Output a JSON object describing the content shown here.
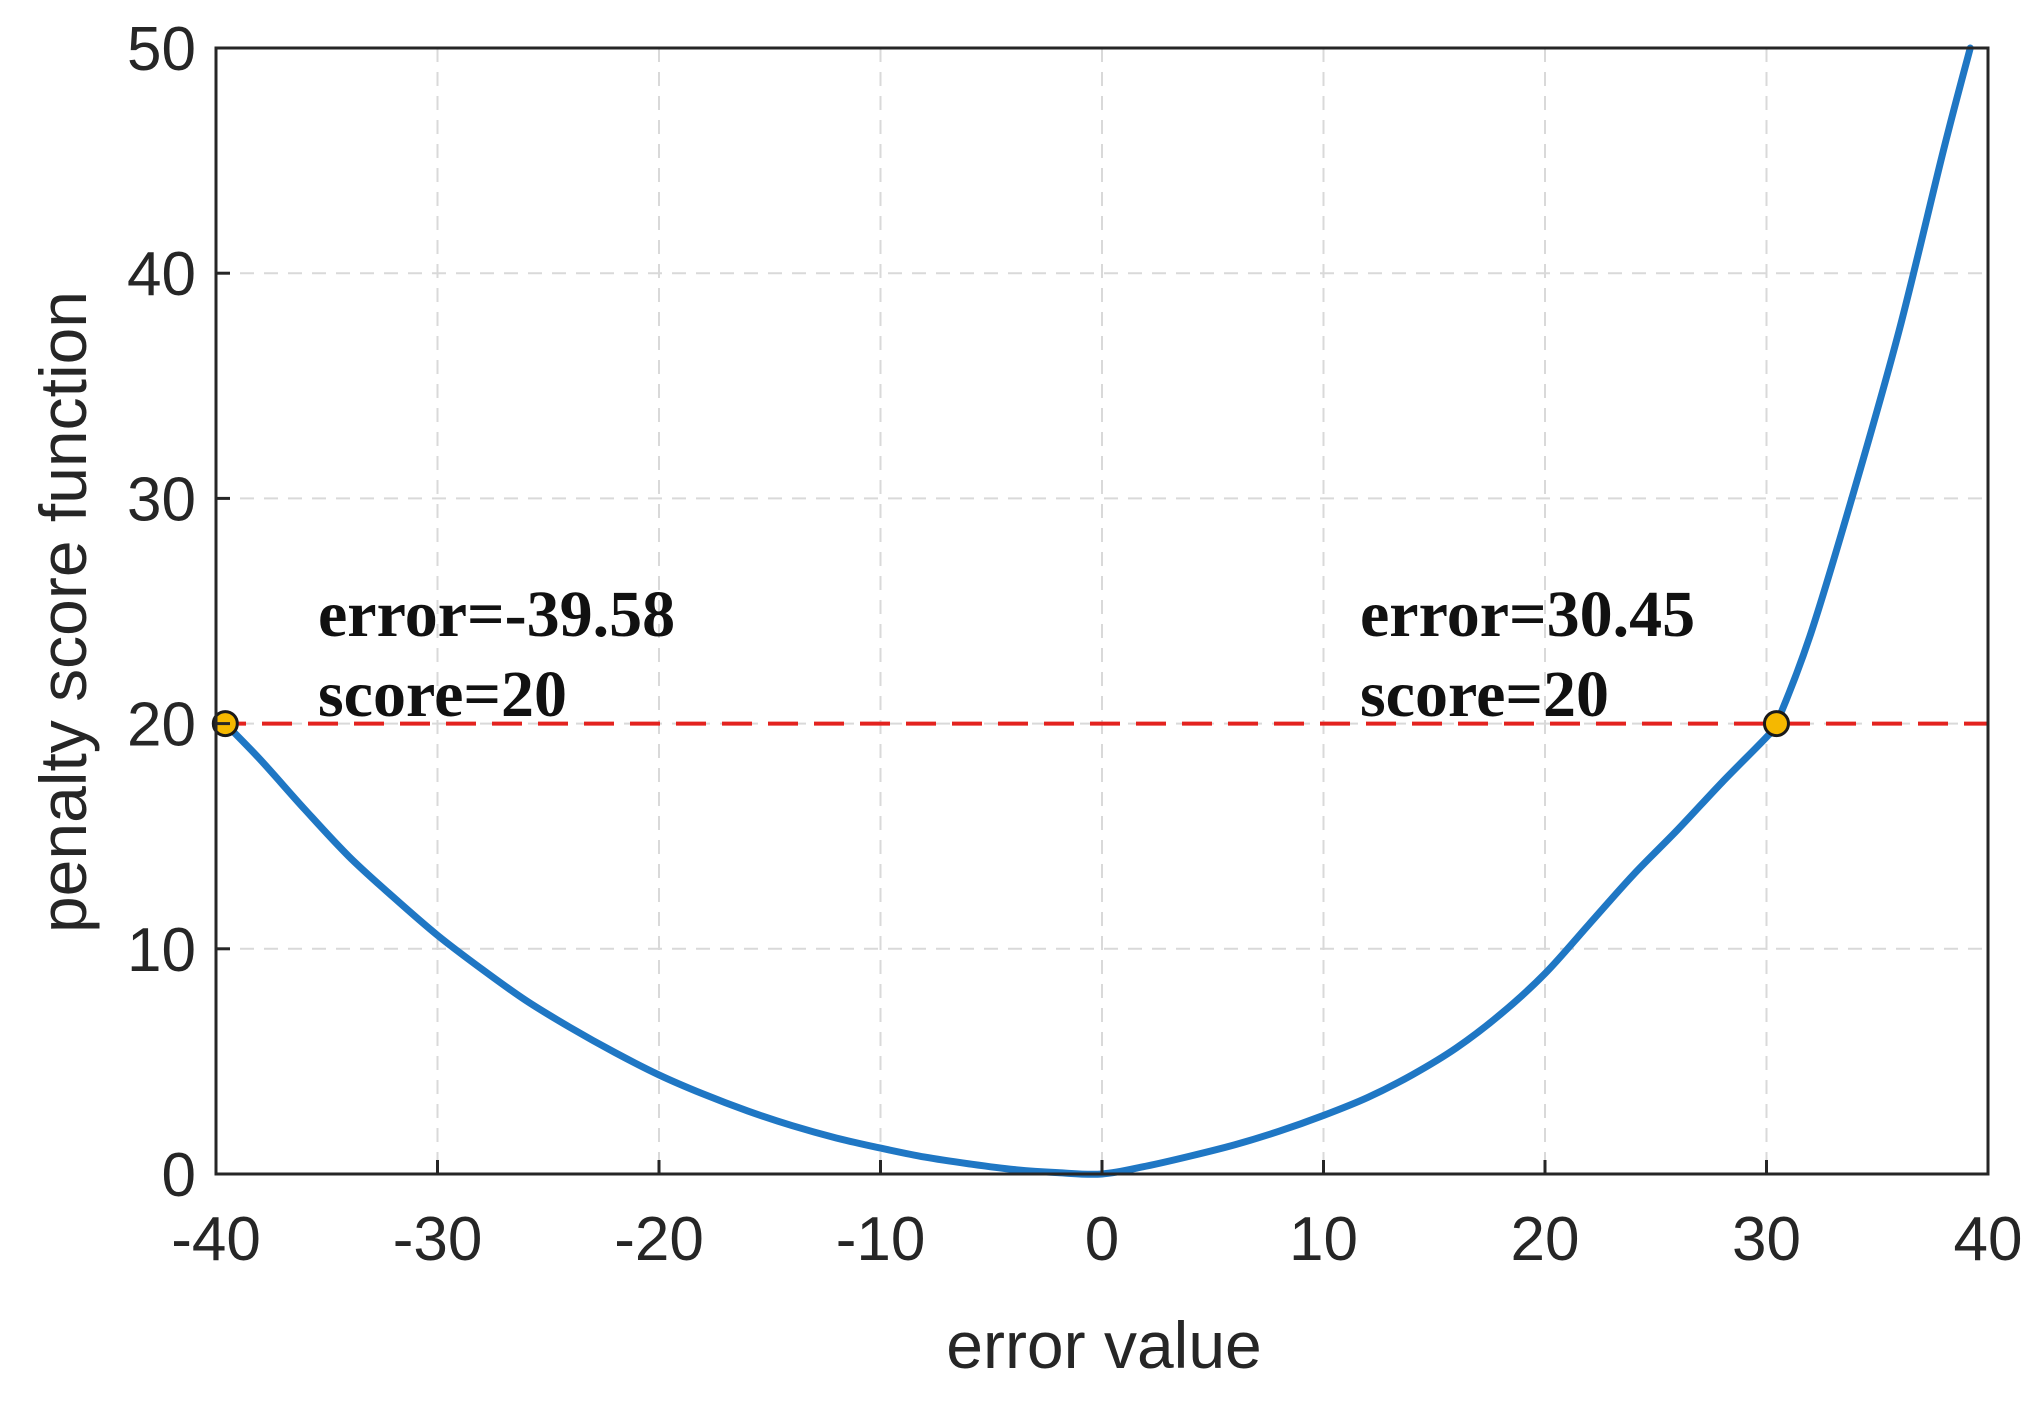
{
  "chart_data": {
    "type": "line",
    "title": "",
    "xlabel": "error value",
    "ylabel": "penalty score function",
    "xlim": [
      -40,
      40
    ],
    "ylim": [
      0,
      50
    ],
    "xticks": [
      "-40",
      "-30",
      "-20",
      "-10",
      "0",
      "10",
      "20",
      "30",
      "40"
    ],
    "yticks": [
      "0",
      "10",
      "20",
      "30",
      "40",
      "50"
    ],
    "grid": true,
    "series": [
      {
        "color": "#1f77c4",
        "x": [
          -39.58,
          -38,
          -36,
          -34,
          -32,
          -30,
          -28,
          -26,
          -24,
          -22,
          -20,
          -18,
          -16,
          -14,
          -12,
          -10,
          -8,
          -6,
          -4,
          -2,
          0,
          2,
          4,
          6,
          8,
          10,
          12,
          14,
          16,
          18,
          20,
          22,
          24,
          26,
          28,
          30,
          30.45,
          32,
          34,
          36,
          38,
          39.2
        ],
        "y": [
          20.0,
          18.4,
          16.2,
          14.1,
          12.3,
          10.6,
          9.1,
          7.7,
          6.5,
          5.4,
          4.4,
          3.55,
          2.8,
          2.15,
          1.6,
          1.15,
          0.75,
          0.45,
          0.2,
          0.06,
          0,
          0.35,
          0.8,
          1.3,
          1.9,
          2.6,
          3.4,
          4.4,
          5.6,
          7.1,
          8.9,
          11.1,
          13.3,
          15.3,
          17.4,
          19.4,
          20.0,
          24.0,
          30.5,
          37.5,
          45.5,
          50.0
        ]
      }
    ],
    "reference_line": {
      "y": 20,
      "color": "#e3231f",
      "style": "dashed"
    },
    "highlight_points": [
      {
        "x": -39.58,
        "y": 20,
        "color": "#f5b800"
      },
      {
        "x": 30.45,
        "y": 20,
        "color": "#f5b800"
      }
    ],
    "annotations": [
      {
        "line1": "error=-39.58",
        "line2": "score=20"
      },
      {
        "line1": "error=30.45",
        "line2": "score=20"
      }
    ]
  }
}
